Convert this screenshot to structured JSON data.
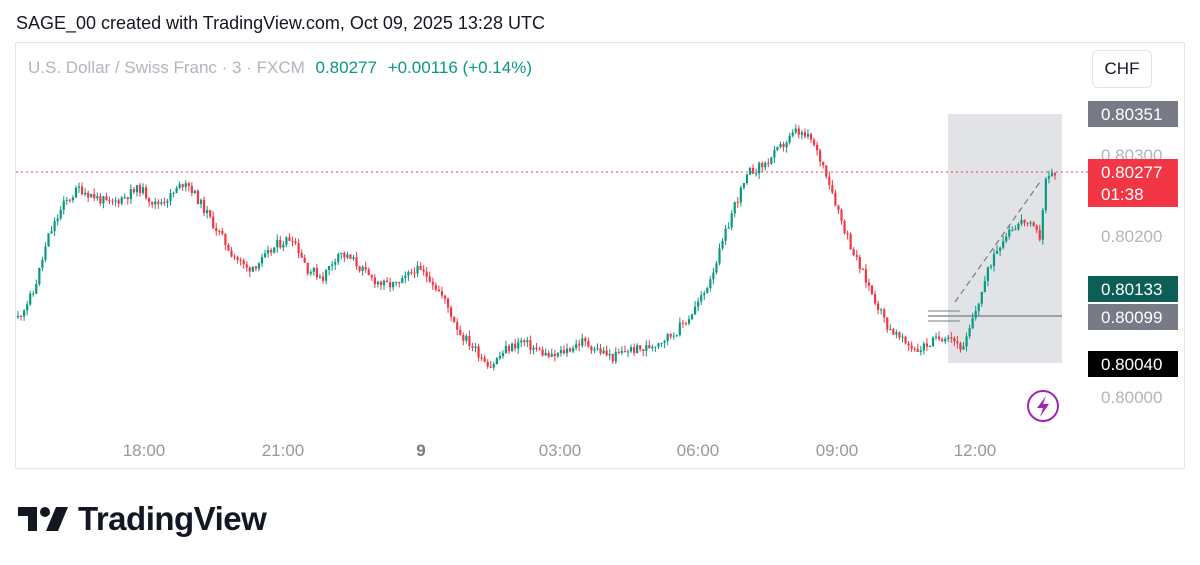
{
  "header": {
    "text": "SAGE_00 created with TradingView.com, Oct 09, 2025 13:28 UTC"
  },
  "legend": {
    "symbol": "U.S. Dollar / Swiss Franc · 3 · FXCM",
    "price": "0.80277",
    "change": "+0.00116 (+0.14%)"
  },
  "currency_button": "CHF",
  "brand": {
    "name": "TradingView"
  },
  "colors": {
    "up": "#089981",
    "down": "#f23645",
    "accent": "#9c27b0"
  },
  "chart_data": {
    "type": "candlestick",
    "timeframe": "3",
    "x_ticks": [
      "18:00",
      "21:00",
      "9",
      "03:00",
      "06:00",
      "09:00",
      "12:00"
    ],
    "y_ticks": [
      "0.80300",
      "0.80200",
      "0.80000"
    ],
    "ylim": [
      0.7998,
      0.8037
    ],
    "price_labels": {
      "high": "0.80351",
      "last": "0.80277",
      "countdown": "01:38",
      "green": "0.80133",
      "gray": "0.80099",
      "low": "0.80040"
    },
    "current_price": 0.80277,
    "range_box": {
      "high": 0.80351,
      "low": 0.8004
    },
    "line_level": 0.80099,
    "price_path": [
      [
        0,
        0.801
      ],
      [
        5,
        0.8013
      ],
      [
        10,
        0.802
      ],
      [
        15,
        0.8024
      ],
      [
        20,
        0.8026
      ],
      [
        25,
        0.8025
      ],
      [
        30,
        0.8024
      ],
      [
        35,
        0.8025
      ],
      [
        40,
        0.8026
      ],
      [
        45,
        0.8024
      ],
      [
        50,
        0.8025
      ],
      [
        55,
        0.8027
      ],
      [
        60,
        0.8024
      ],
      [
        65,
        0.8021
      ],
      [
        70,
        0.8018
      ],
      [
        75,
        0.8016
      ],
      [
        80,
        0.8017
      ],
      [
        85,
        0.8019
      ],
      [
        90,
        0.802
      ],
      [
        95,
        0.8016
      ],
      [
        100,
        0.8015
      ],
      [
        105,
        0.8018
      ],
      [
        110,
        0.8017
      ],
      [
        115,
        0.8015
      ],
      [
        120,
        0.8014
      ],
      [
        125,
        0.8014
      ],
      [
        130,
        0.8016
      ],
      [
        135,
        0.8015
      ],
      [
        140,
        0.8012
      ],
      [
        145,
        0.8008
      ],
      [
        150,
        0.8006
      ],
      [
        155,
        0.8004
      ],
      [
        160,
        0.8006
      ],
      [
        165,
        0.8007
      ],
      [
        170,
        0.8006
      ],
      [
        175,
        0.8005
      ],
      [
        180,
        0.8006
      ],
      [
        185,
        0.8007
      ],
      [
        190,
        0.8006
      ],
      [
        195,
        0.8005
      ],
      [
        200,
        0.8006
      ],
      [
        205,
        0.8006
      ],
      [
        210,
        0.8007
      ],
      [
        215,
        0.8008
      ],
      [
        220,
        0.801
      ],
      [
        225,
        0.8013
      ],
      [
        230,
        0.8018
      ],
      [
        235,
        0.8024
      ],
      [
        240,
        0.8028
      ],
      [
        245,
        0.8029
      ],
      [
        250,
        0.8031
      ],
      [
        255,
        0.8033
      ],
      [
        260,
        0.8032
      ],
      [
        265,
        0.8028
      ],
      [
        270,
        0.8022
      ],
      [
        275,
        0.8017
      ],
      [
        280,
        0.8013
      ],
      [
        285,
        0.8009
      ],
      [
        290,
        0.8007
      ],
      [
        295,
        0.8006
      ],
      [
        300,
        0.8007
      ],
      [
        305,
        0.8008
      ],
      [
        310,
        0.8006
      ],
      [
        315,
        0.8012
      ],
      [
        320,
        0.8018
      ],
      [
        325,
        0.8021
      ],
      [
        330,
        0.8022
      ],
      [
        335,
        0.802
      ],
      [
        337,
        0.8027
      ],
      [
        340,
        0.8028
      ]
    ]
  }
}
